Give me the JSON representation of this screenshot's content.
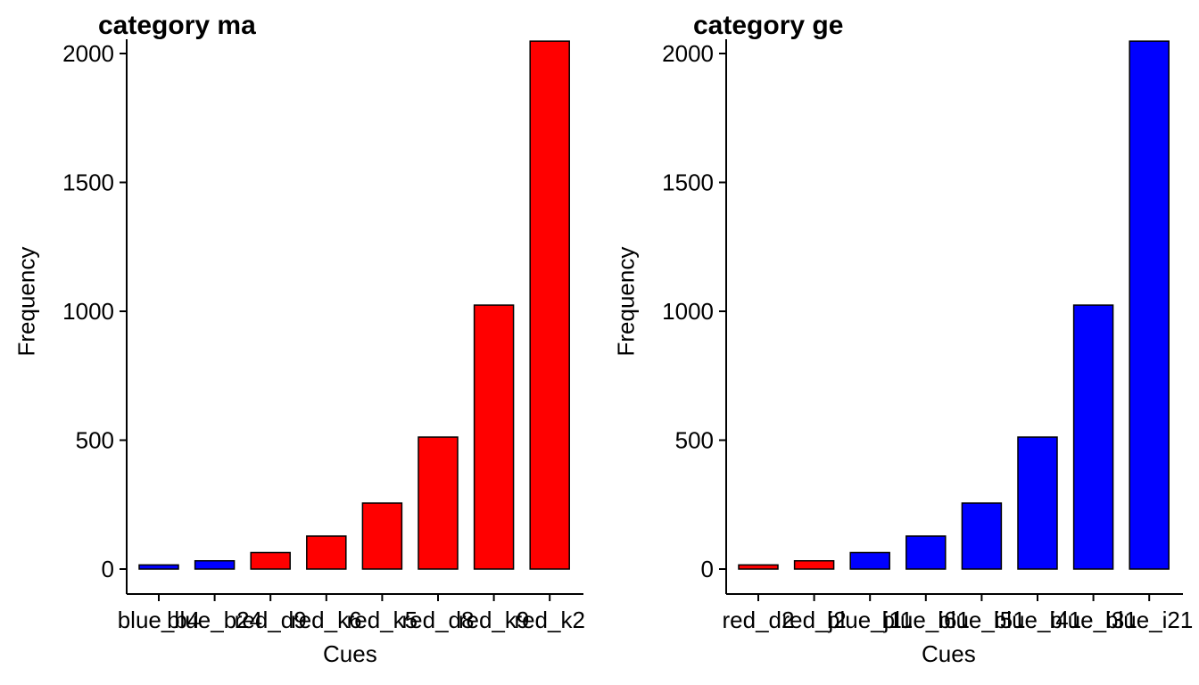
{
  "chart_data": [
    {
      "type": "bar",
      "title": "category ma",
      "xlabel": "Cues",
      "ylabel": "Frequency",
      "categories": [
        "blue_b4",
        "blue_b24",
        "red_d9",
        "red_k6",
        "red_k5",
        "red_d8",
        "red_k9",
        "red_k2"
      ],
      "xtick_labels": [
        "blue_b4",
        "blue_b24",
        "red_d9",
        "red_k6",
        "red_k5",
        "red_d8",
        "red_k9",
        "red_k2"
      ],
      "values": [
        16,
        32,
        64,
        128,
        256,
        512,
        1024,
        2048
      ],
      "bar_colors": [
        "#0000ff",
        "#0000ff",
        "#ff0000",
        "#ff0000",
        "#ff0000",
        "#ff0000",
        "#ff0000",
        "#ff0000"
      ],
      "yticks": [
        0,
        500,
        1000,
        1500,
        2000
      ],
      "ylim": [
        -70,
        2100
      ],
      "grid": false,
      "legend": "none"
    },
    {
      "type": "bar",
      "title": "category ge",
      "xlabel": "Cues",
      "ylabel": "Frequency",
      "categories": [
        "red_d2",
        "red_j2",
        "blue_j11",
        "blue_i61",
        "blue_i51",
        "blue_i41",
        "blue_i31",
        "blue_i21"
      ],
      "xtick_labels": [
        "red_d2",
        "red_j2",
        "blue_j11",
        "blue_i61",
        "blue_i51",
        "blue_i41",
        "blue_i31",
        "blue_i21"
      ],
      "values": [
        16,
        32,
        64,
        128,
        256,
        512,
        1024,
        2048
      ],
      "bar_colors": [
        "#ff0000",
        "#ff0000",
        "#0000ff",
        "#0000ff",
        "#0000ff",
        "#0000ff",
        "#0000ff",
        "#0000ff"
      ],
      "yticks": [
        0,
        500,
        1000,
        1500,
        2000
      ],
      "ylim": [
        -70,
        2100
      ],
      "grid": false,
      "legend": "none"
    }
  ]
}
